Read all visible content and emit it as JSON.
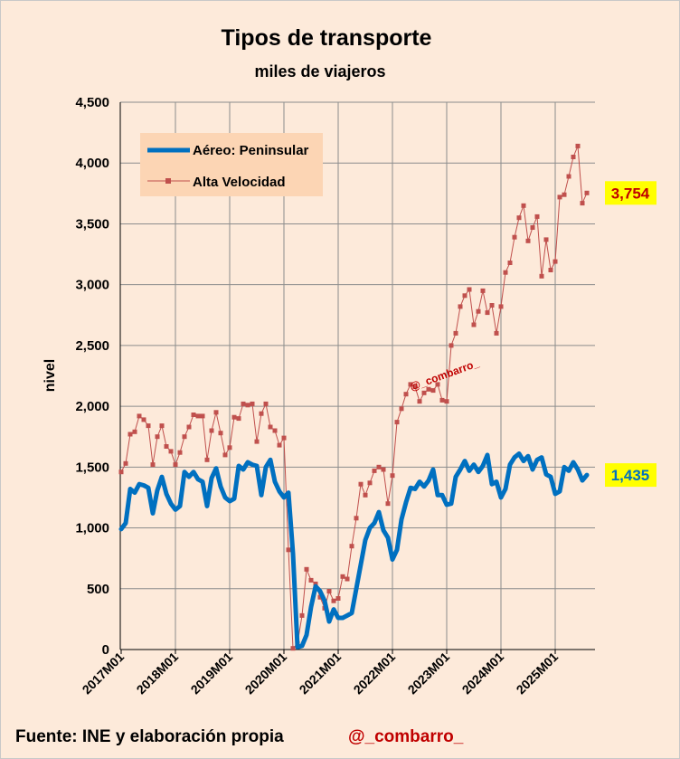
{
  "chart_data": {
    "type": "line",
    "title": "Tipos de transporte",
    "subtitle": "miles de viajeros",
    "ylabel": "nivel",
    "xlabel": "",
    "ylim": [
      0,
      4500
    ],
    "yticks": [
      0,
      500,
      1000,
      1500,
      2000,
      2500,
      3000,
      3500,
      4000,
      4500
    ],
    "ytick_labels": [
      "0",
      "500",
      "1,000",
      "1,500",
      "2,000",
      "2,500",
      "3,000",
      "3,500",
      "4,000",
      "4,500"
    ],
    "xtick_labels": [
      "2017M01",
      "2018M01",
      "2019M01",
      "2020M01",
      "2021M01",
      "2022M01",
      "2023M01",
      "2024M01",
      "2025M01"
    ],
    "x_start": "2017M01",
    "x_end": "2025M09",
    "legend_position": "top-left",
    "series": [
      {
        "name": "Aéreo: Peninsular",
        "color": "#0070c0",
        "style": "thick-line",
        "end_label": "1,435",
        "values": [
          990,
          1040,
          1320,
          1290,
          1360,
          1350,
          1330,
          1120,
          1310,
          1420,
          1280,
          1200,
          1150,
          1180,
          1460,
          1420,
          1460,
          1400,
          1380,
          1180,
          1410,
          1490,
          1340,
          1250,
          1220,
          1240,
          1510,
          1480,
          1540,
          1520,
          1510,
          1270,
          1500,
          1560,
          1380,
          1300,
          1250,
          1290,
          790,
          20,
          30,
          120,
          350,
          520,
          480,
          400,
          230,
          330,
          260,
          260,
          280,
          300,
          500,
          700,
          900,
          1000,
          1040,
          1130,
          980,
          920,
          740,
          820,
          1070,
          1210,
          1330,
          1320,
          1380,
          1340,
          1390,
          1480,
          1270,
          1270,
          1190,
          1200,
          1420,
          1480,
          1550,
          1470,
          1520,
          1460,
          1510,
          1600,
          1360,
          1380,
          1250,
          1320,
          1520,
          1580,
          1610,
          1550,
          1590,
          1480,
          1560,
          1580,
          1440,
          1420,
          1280,
          1300,
          1500,
          1470,
          1540,
          1480,
          1390,
          1435
        ]
      },
      {
        "name": "Alta Velocidad",
        "color": "#c0504d",
        "style": "thin-line-square-markers",
        "end_label": "3,754",
        "values": [
          1460,
          1530,
          1770,
          1790,
          1920,
          1890,
          1840,
          1520,
          1750,
          1840,
          1670,
          1630,
          1520,
          1620,
          1750,
          1830,
          1930,
          1920,
          1920,
          1560,
          1800,
          1950,
          1780,
          1600,
          1660,
          1910,
          1900,
          2020,
          2010,
          2020,
          1710,
          1940,
          2020,
          1830,
          1800,
          1680,
          1740,
          820,
          10,
          50,
          280,
          660,
          570,
          540,
          430,
          340,
          480,
          400,
          420,
          600,
          580,
          850,
          1080,
          1360,
          1270,
          1370,
          1470,
          1500,
          1480,
          1200,
          1430,
          1870,
          1980,
          2100,
          2180,
          2160,
          2040,
          2110,
          2140,
          2130,
          2180,
          2050,
          2040,
          2500,
          2600,
          2820,
          2910,
          2960,
          2670,
          2780,
          2950,
          2770,
          2830,
          2600,
          2820,
          3100,
          3180,
          3390,
          3550,
          3650,
          3360,
          3470,
          3560,
          3070,
          3370,
          3120,
          3190,
          3720,
          3740,
          3890,
          4050,
          4140,
          3670,
          3754
        ]
      }
    ]
  },
  "footer": {
    "source": "Fuente: INE  y elaboración propia",
    "handle": "@_combarro_"
  },
  "watermark": "@_combarro_",
  "colors": {
    "background": "#fdeada",
    "legend_bg": "#fcd5b4",
    "label_highlight": "#ffff00",
    "aereo_label_text": "#0070c0",
    "av_label_text": "#c00000"
  }
}
